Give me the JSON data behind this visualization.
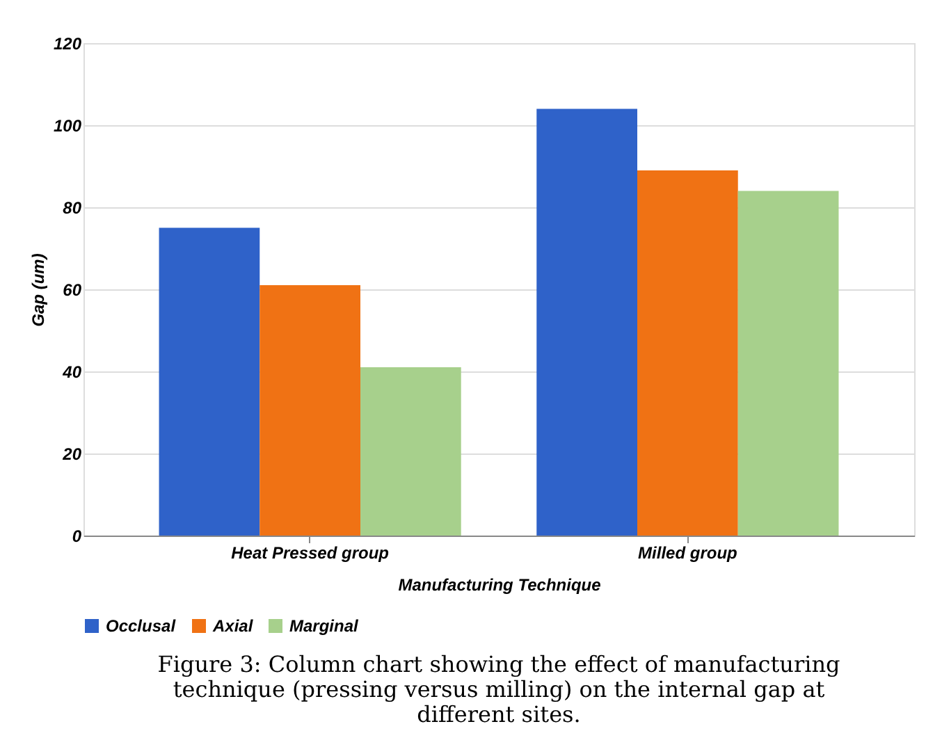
{
  "chart_data": {
    "type": "bar",
    "categories": [
      "Heat Pressed group",
      "Milled group"
    ],
    "series": [
      {
        "name": "Occlusal",
        "color": "#2f62c9",
        "values": [
          75,
          104
        ]
      },
      {
        "name": "Axial",
        "color": "#f07214",
        "values": [
          61,
          89
        ]
      },
      {
        "name": "Marginal",
        "color": "#a7d08c",
        "values": [
          41,
          84
        ]
      }
    ],
    "xlabel": "Manufacturing Technique",
    "ylabel": "Gap (um)",
    "ylim": [
      0,
      120
    ],
    "yticks": [
      0,
      20,
      40,
      60,
      80,
      100,
      120
    ],
    "grid": "y",
    "legend": "bottom",
    "annotations": [
      "Figure 3: Column chart showing the effect of manufacturing technique (pressing versus milling) on the internal gap at different sites."
    ]
  }
}
